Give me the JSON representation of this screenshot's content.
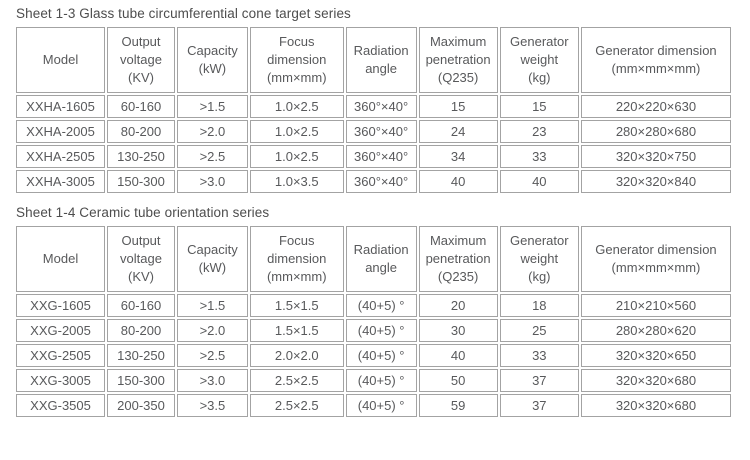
{
  "page": {
    "background": "#ffffff",
    "text_color": "#58595b",
    "border_color": "#a3a3a3",
    "title_color": "#4d4d4d"
  },
  "tables": [
    {
      "title": "Sheet 1-3 Glass tube circumferential cone target series",
      "columns": [
        "Model",
        "Output\nvoltage\n(KV)",
        "Capacity\n(kW)",
        "Focus\ndimension\n(mm×mm)",
        "Radiation\nangle",
        "Maximum\npenetration\n(Q235)",
        "Generator\nweight\n(kg)",
        "Generator dimension\n(mm×mm×mm)"
      ],
      "rows": [
        [
          "XXHA-1605",
          "60-160",
          ">1.5",
          "1.0×2.5",
          "360°×40°",
          "15",
          "15",
          "220×220×630"
        ],
        [
          "XXHA-2005",
          "80-200",
          ">2.0",
          "1.0×2.5",
          "360°×40°",
          "24",
          "23",
          "280×280×680"
        ],
        [
          "XXHA-2505",
          "130-250",
          ">2.5",
          "1.0×2.5",
          "360°×40°",
          "34",
          "33",
          "320×320×750"
        ],
        [
          "XXHA-3005",
          "150-300",
          ">3.0",
          "1.0×3.5",
          "360°×40°",
          "40",
          "40",
          "320×320×840"
        ]
      ]
    },
    {
      "title": "Sheet 1-4 Ceramic tube orientation series",
      "columns": [
        "Model",
        "Output\nvoltage\n(KV)",
        "Capacity\n(kW)",
        "Focus\ndimension\n(mm×mm)",
        "Radiation\nangle",
        "Maximum\npenetration\n(Q235)",
        "Generator\nweight\n(kg)",
        "Generator dimension\n(mm×mm×mm)"
      ],
      "rows": [
        [
          "XXG-1605",
          "60-160",
          ">1.5",
          "1.5×1.5",
          "(40+5) °",
          "20",
          "18",
          "210×210×560"
        ],
        [
          "XXG-2005",
          "80-200",
          ">2.0",
          "1.5×1.5",
          "(40+5) °",
          "30",
          "25",
          "280×280×620"
        ],
        [
          "XXG-2505",
          "130-250",
          ">2.5",
          "2.0×2.0",
          "(40+5) °",
          "40",
          "33",
          "320×320×650"
        ],
        [
          "XXG-3005",
          "150-300",
          ">3.0",
          "2.5×2.5",
          "(40+5) °",
          "50",
          "37",
          "320×320×680"
        ],
        [
          "XXG-3505",
          "200-350",
          ">3.5",
          "2.5×2.5",
          "(40+5) °",
          "59",
          "37",
          "320×320×680"
        ]
      ]
    }
  ]
}
